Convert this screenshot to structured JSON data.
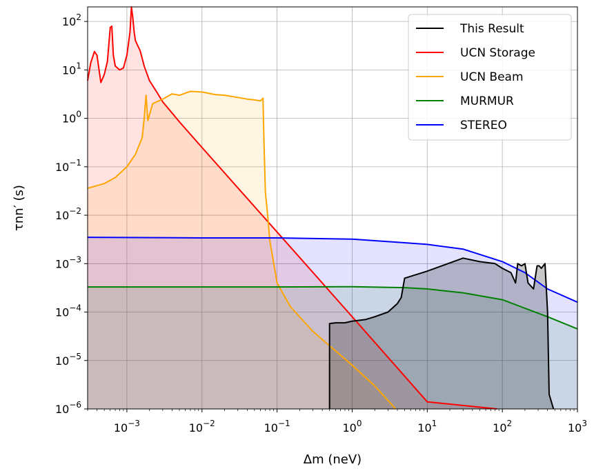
{
  "chart_data": {
    "type": "area",
    "xlabel": "Δm (neV)",
    "ylabel": "τnn′ (s)",
    "x_scale": "log",
    "y_scale": "log",
    "xlim": [
      0.0003,
      1000
    ],
    "ylim": [
      1e-06,
      200
    ],
    "grid": true,
    "legend_position": "top-right",
    "x_ticks": [
      {
        "value": 0.001,
        "mant": "10",
        "exp": "−3"
      },
      {
        "value": 0.01,
        "mant": "10",
        "exp": "−2"
      },
      {
        "value": 0.1,
        "mant": "10",
        "exp": "−1"
      },
      {
        "value": 1,
        "mant": "10",
        "exp": "0"
      },
      {
        "value": 10,
        "mant": "10",
        "exp": "1"
      },
      {
        "value": 100,
        "mant": "10",
        "exp": "2"
      },
      {
        "value": 1000,
        "mant": "10",
        "exp": "3"
      }
    ],
    "y_ticks": [
      {
        "value": 1e-06,
        "mant": "10",
        "exp": "−6"
      },
      {
        "value": 1e-05,
        "mant": "10",
        "exp": "−5"
      },
      {
        "value": 0.0001,
        "mant": "10",
        "exp": "−4"
      },
      {
        "value": 0.001,
        "mant": "10",
        "exp": "−3"
      },
      {
        "value": 0.01,
        "mant": "10",
        "exp": "−2"
      },
      {
        "value": 0.1,
        "mant": "10",
        "exp": "−1"
      },
      {
        "value": 1,
        "mant": "10",
        "exp": "0"
      },
      {
        "value": 10,
        "mant": "10",
        "exp": "1"
      },
      {
        "value": 100,
        "mant": "10",
        "exp": "2"
      }
    ],
    "series": [
      {
        "name": "UCN Storage",
        "color": "#ff0000",
        "fill": "rgba(255,0,0,0.11)",
        "points": [
          [
            0.0003,
            6
          ],
          [
            0.00033,
            14
          ],
          [
            0.00037,
            24
          ],
          [
            0.0004,
            20
          ],
          [
            0.00045,
            5.5
          ],
          [
            0.0005,
            8
          ],
          [
            0.00055,
            15
          ],
          [
            0.0006,
            75
          ],
          [
            0.00063,
            80
          ],
          [
            0.00066,
            20
          ],
          [
            0.0007,
            12
          ],
          [
            0.0008,
            10
          ],
          [
            0.0009,
            11
          ],
          [
            0.001,
            20
          ],
          [
            0.0011,
            60
          ],
          [
            0.00115,
            200
          ],
          [
            0.0012,
            120
          ],
          [
            0.00125,
            60
          ],
          [
            0.0013,
            40
          ],
          [
            0.0015,
            25
          ],
          [
            0.0017,
            12
          ],
          [
            0.002,
            6
          ],
          [
            0.0025,
            3.5
          ],
          [
            0.003,
            2.2
          ],
          [
            0.005,
            0.85
          ],
          [
            0.01,
            0.25
          ],
          [
            0.1,
            0.0045
          ],
          [
            1,
            8e-05
          ],
          [
            10,
            1.4e-06
          ],
          [
            85,
            1e-06
          ]
        ]
      },
      {
        "name": "UCN Beam",
        "color": "#ffa500",
        "fill": "rgba(255,165,0,0.11)",
        "points": [
          [
            0.0003,
            0.036
          ],
          [
            0.0005,
            0.045
          ],
          [
            0.0007,
            0.06
          ],
          [
            0.001,
            0.1
          ],
          [
            0.0013,
            0.18
          ],
          [
            0.0016,
            0.4
          ],
          [
            0.0017,
            1
          ],
          [
            0.0018,
            3.0
          ],
          [
            0.0019,
            0.9
          ],
          [
            0.0022,
            2.0
          ],
          [
            0.003,
            2.5
          ],
          [
            0.004,
            3.2
          ],
          [
            0.005,
            3.0
          ],
          [
            0.007,
            3.6
          ],
          [
            0.01,
            3.5
          ],
          [
            0.015,
            3.1
          ],
          [
            0.02,
            3.0
          ],
          [
            0.03,
            2.7
          ],
          [
            0.04,
            2.5
          ],
          [
            0.05,
            2.4
          ],
          [
            0.06,
            2.3
          ],
          [
            0.065,
            2.6
          ],
          [
            0.067,
            0.3
          ],
          [
            0.07,
            0.03
          ],
          [
            0.075,
            0.01
          ],
          [
            0.08,
            0.003
          ],
          [
            0.1,
            0.0004
          ],
          [
            0.15,
            0.00013
          ],
          [
            0.3,
            4e-05
          ],
          [
            1,
            8e-06
          ],
          [
            2,
            3e-06
          ],
          [
            3.8,
            1e-06
          ]
        ]
      },
      {
        "name": "MURMUR",
        "color": "#008000",
        "fill": "rgba(0,128,0,0.11)",
        "points": [
          [
            0.0003,
            0.00033
          ],
          [
            0.01,
            0.00033
          ],
          [
            0.1,
            0.00033
          ],
          [
            1,
            0.000335
          ],
          [
            5,
            0.00032
          ],
          [
            10,
            0.0003
          ],
          [
            30,
            0.00025
          ],
          [
            100,
            0.00018
          ],
          [
            200,
            0.00012
          ],
          [
            400,
            8e-05
          ],
          [
            1000,
            4.5e-05
          ]
        ]
      },
      {
        "name": "STEREO",
        "color": "#0000ff",
        "fill": "rgba(0,0,255,0.11)",
        "points": [
          [
            0.0003,
            0.0035
          ],
          [
            0.01,
            0.0034
          ],
          [
            0.1,
            0.0034
          ],
          [
            1,
            0.0032
          ],
          [
            5,
            0.0027
          ],
          [
            10,
            0.0025
          ],
          [
            30,
            0.002
          ],
          [
            100,
            0.0011
          ],
          [
            200,
            0.00065
          ],
          [
            400,
            0.0003
          ],
          [
            1000,
            0.00016
          ]
        ]
      },
      {
        "name": "This Result",
        "color": "#000000",
        "fill": "rgba(0,0,0,0.22)",
        "points": [
          [
            0.5,
            1e-06
          ],
          [
            0.5,
            5.8e-05
          ],
          [
            0.6,
            6e-05
          ],
          [
            0.8,
            6e-05
          ],
          [
            1,
            6.5e-05
          ],
          [
            1.5,
            7e-05
          ],
          [
            2,
            8e-05
          ],
          [
            3,
            0.0001
          ],
          [
            4,
            0.00015
          ],
          [
            4.5,
            0.0002
          ],
          [
            5,
            0.0005
          ],
          [
            10,
            0.0007
          ],
          [
            30,
            0.0013
          ],
          [
            50,
            0.0011
          ],
          [
            80,
            0.001
          ],
          [
            100,
            0.0008
          ],
          [
            130,
            0.00065
          ],
          [
            150,
            0.0004
          ],
          [
            160,
            0.001
          ],
          [
            180,
            0.0009
          ],
          [
            200,
            0.001
          ],
          [
            220,
            0.0004
          ],
          [
            260,
            0.0003
          ],
          [
            290,
            0.0009
          ],
          [
            310,
            0.0009
          ],
          [
            330,
            0.0008
          ],
          [
            370,
            0.001
          ],
          [
            400,
            0.0001
          ],
          [
            420,
            2e-06
          ],
          [
            480,
            1e-06
          ]
        ]
      }
    ]
  }
}
